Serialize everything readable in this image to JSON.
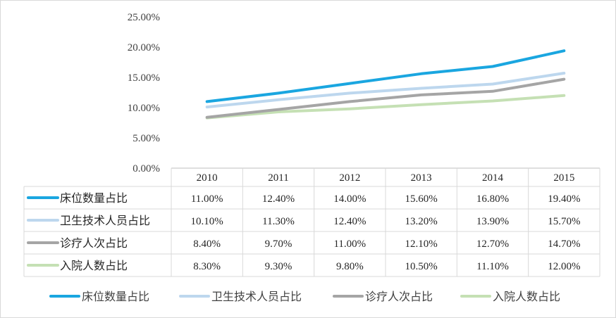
{
  "chart_data": {
    "type": "line",
    "title": "",
    "xlabel": "",
    "ylabel": "",
    "x": [
      "2010",
      "2011",
      "2012",
      "2013",
      "2014",
      "2015"
    ],
    "ylim": [
      0,
      0.25
    ],
    "ytick_labels": [
      "0.00%",
      "5.00%",
      "10.00%",
      "15.00%",
      "20.00%",
      "25.00%"
    ],
    "grid": false,
    "legend_position": "bottom",
    "data_table": true,
    "series": [
      {
        "name": "床位数量占比",
        "color": "#1aa6e0",
        "values": [
          0.11,
          0.124,
          0.14,
          0.156,
          0.168,
          0.194
        ],
        "labels": [
          "11.00%",
          "12.40%",
          "14.00%",
          "15.60%",
          "16.80%",
          "19.40%"
        ]
      },
      {
        "name": "卫生技术人员占比",
        "color": "#bdd7ee",
        "values": [
          0.101,
          0.113,
          0.124,
          0.132,
          0.139,
          0.157
        ],
        "labels": [
          "10.10%",
          "11.30%",
          "12.40%",
          "13.20%",
          "13.90%",
          "15.70%"
        ]
      },
      {
        "name": "诊疗人次占比",
        "color": "#a5a5a5",
        "values": [
          0.084,
          0.097,
          0.11,
          0.121,
          0.127,
          0.147
        ],
        "labels": [
          "8.40%",
          "9.70%",
          "11.00%",
          "12.10%",
          "12.70%",
          "14.70%"
        ]
      },
      {
        "name": "入院人数占比",
        "color": "#c5e0b4",
        "values": [
          0.083,
          0.093,
          0.098,
          0.105,
          0.111,
          0.12
        ],
        "labels": [
          "8.30%",
          "9.30%",
          "9.80%",
          "10.50%",
          "11.10%",
          "12.00%"
        ]
      }
    ]
  }
}
